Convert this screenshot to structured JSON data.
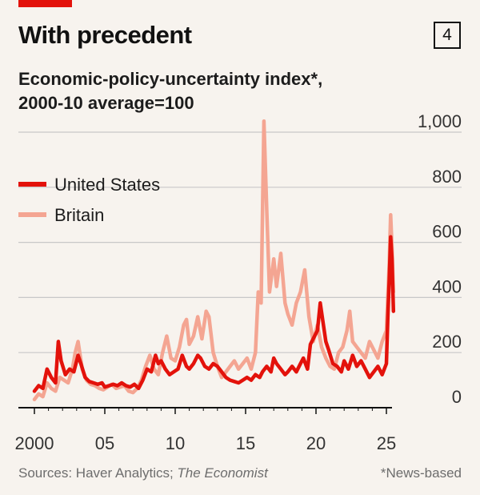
{
  "header": {
    "title": "With precedent",
    "badge": "4",
    "subtitle_line1": "Economic-policy-uncertainty index*,",
    "subtitle_line2": "2000-10 average=100"
  },
  "footer": {
    "sources_prefix": "Sources: Haver Analytics; ",
    "sources_italic": "The Economist",
    "note": "*News-based"
  },
  "colors": {
    "background": "#f7f3ee",
    "united_states": "#e3120b",
    "britain": "#f4a592",
    "accent": "#e3120b",
    "grid": "#c8c8c8"
  },
  "chart_data": {
    "type": "line",
    "title": "With precedent",
    "subtitle": "Economic-policy-uncertainty index*, 2000-10 average=100",
    "xlim": [
      2000,
      2025.5
    ],
    "ylim": [
      0,
      1000
    ],
    "x_ticks": [
      2000,
      2005,
      2010,
      2015,
      2020,
      2025
    ],
    "x_tick_labels": [
      "2000",
      "05",
      "10",
      "15",
      "20",
      "25"
    ],
    "y_ticks": [
      0,
      200,
      400,
      600,
      800,
      1000
    ],
    "y_tick_labels": [
      "0",
      "200",
      "400",
      "600",
      "800",
      "1,000"
    ],
    "grid": true,
    "legend_position": "top-left",
    "series": [
      {
        "name": "United States",
        "color": "#e3120b",
        "points": [
          [
            2000.0,
            60
          ],
          [
            2000.3,
            80
          ],
          [
            2000.6,
            70
          ],
          [
            2000.9,
            140
          ],
          [
            2001.2,
            110
          ],
          [
            2001.5,
            90
          ],
          [
            2001.7,
            240
          ],
          [
            2001.9,
            170
          ],
          [
            2002.2,
            120
          ],
          [
            2002.5,
            140
          ],
          [
            2002.8,
            130
          ],
          [
            2003.1,
            190
          ],
          [
            2003.3,
            160
          ],
          [
            2003.6,
            110
          ],
          [
            2003.9,
            95
          ],
          [
            2004.2,
            90
          ],
          [
            2004.5,
            85
          ],
          [
            2004.8,
            90
          ],
          [
            2005.0,
            75
          ],
          [
            2005.3,
            80
          ],
          [
            2005.6,
            85
          ],
          [
            2005.9,
            80
          ],
          [
            2006.2,
            90
          ],
          [
            2006.5,
            80
          ],
          [
            2006.8,
            75
          ],
          [
            2007.1,
            85
          ],
          [
            2007.4,
            70
          ],
          [
            2007.7,
            100
          ],
          [
            2008.0,
            140
          ],
          [
            2008.3,
            130
          ],
          [
            2008.6,
            190
          ],
          [
            2008.8,
            160
          ],
          [
            2009.0,
            170
          ],
          [
            2009.3,
            140
          ],
          [
            2009.6,
            120
          ],
          [
            2009.9,
            130
          ],
          [
            2010.2,
            140
          ],
          [
            2010.5,
            190
          ],
          [
            2010.8,
            150
          ],
          [
            2011.0,
            140
          ],
          [
            2011.3,
            160
          ],
          [
            2011.6,
            190
          ],
          [
            2011.8,
            180
          ],
          [
            2012.1,
            150
          ],
          [
            2012.4,
            140
          ],
          [
            2012.7,
            160
          ],
          [
            2013.0,
            150
          ],
          [
            2013.3,
            130
          ],
          [
            2013.6,
            110
          ],
          [
            2013.9,
            100
          ],
          [
            2014.2,
            95
          ],
          [
            2014.5,
            90
          ],
          [
            2014.8,
            100
          ],
          [
            2015.1,
            110
          ],
          [
            2015.4,
            100
          ],
          [
            2015.7,
            120
          ],
          [
            2016.0,
            110
          ],
          [
            2016.2,
            130
          ],
          [
            2016.5,
            150
          ],
          [
            2016.8,
            130
          ],
          [
            2017.0,
            180
          ],
          [
            2017.2,
            160
          ],
          [
            2017.5,
            140
          ],
          [
            2017.8,
            120
          ],
          [
            2018.0,
            130
          ],
          [
            2018.3,
            150
          ],
          [
            2018.6,
            130
          ],
          [
            2018.9,
            160
          ],
          [
            2019.1,
            180
          ],
          [
            2019.4,
            140
          ],
          [
            2019.6,
            230
          ],
          [
            2019.9,
            260
          ],
          [
            2020.1,
            280
          ],
          [
            2020.3,
            380
          ],
          [
            2020.5,
            310
          ],
          [
            2020.7,
            240
          ],
          [
            2020.9,
            210
          ],
          [
            2021.2,
            160
          ],
          [
            2021.5,
            150
          ],
          [
            2021.8,
            130
          ],
          [
            2022.0,
            170
          ],
          [
            2022.3,
            140
          ],
          [
            2022.6,
            190
          ],
          [
            2022.9,
            150
          ],
          [
            2023.2,
            170
          ],
          [
            2023.5,
            140
          ],
          [
            2023.8,
            110
          ],
          [
            2024.1,
            130
          ],
          [
            2024.4,
            150
          ],
          [
            2024.7,
            120
          ],
          [
            2025.0,
            160
          ],
          [
            2025.1,
            330
          ],
          [
            2025.2,
            460
          ],
          [
            2025.3,
            620
          ],
          [
            2025.4,
            540
          ],
          [
            2025.5,
            350
          ]
        ]
      },
      {
        "name": "Britain",
        "color": "#f4a592",
        "points": [
          [
            2000.0,
            30
          ],
          [
            2000.3,
            50
          ],
          [
            2000.6,
            40
          ],
          [
            2000.9,
            90
          ],
          [
            2001.2,
            70
          ],
          [
            2001.5,
            60
          ],
          [
            2001.8,
            110
          ],
          [
            2002.1,
            100
          ],
          [
            2002.4,
            90
          ],
          [
            2002.7,
            140
          ],
          [
            2002.9,
            200
          ],
          [
            2003.1,
            240
          ],
          [
            2003.4,
            140
          ],
          [
            2003.7,
            100
          ],
          [
            2004.0,
            85
          ],
          [
            2004.3,
            80
          ],
          [
            2004.6,
            70
          ],
          [
            2004.9,
            65
          ],
          [
            2005.2,
            75
          ],
          [
            2005.5,
            85
          ],
          [
            2005.8,
            70
          ],
          [
            2006.1,
            75
          ],
          [
            2006.4,
            80
          ],
          [
            2006.7,
            60
          ],
          [
            2007.0,
            55
          ],
          [
            2007.3,
            70
          ],
          [
            2007.6,
            100
          ],
          [
            2007.9,
            150
          ],
          [
            2008.2,
            190
          ],
          [
            2008.5,
            140
          ],
          [
            2008.8,
            120
          ],
          [
            2009.1,
            200
          ],
          [
            2009.4,
            260
          ],
          [
            2009.7,
            180
          ],
          [
            2010.0,
            170
          ],
          [
            2010.3,
            220
          ],
          [
            2010.6,
            300
          ],
          [
            2010.8,
            320
          ],
          [
            2011.0,
            230
          ],
          [
            2011.3,
            260
          ],
          [
            2011.6,
            330
          ],
          [
            2011.9,
            250
          ],
          [
            2012.2,
            350
          ],
          [
            2012.4,
            330
          ],
          [
            2012.7,
            200
          ],
          [
            2013.0,
            150
          ],
          [
            2013.3,
            110
          ],
          [
            2013.6,
            130
          ],
          [
            2013.9,
            150
          ],
          [
            2014.2,
            170
          ],
          [
            2014.5,
            140
          ],
          [
            2014.8,
            160
          ],
          [
            2015.1,
            180
          ],
          [
            2015.4,
            140
          ],
          [
            2015.7,
            200
          ],
          [
            2015.9,
            420
          ],
          [
            2016.1,
            380
          ],
          [
            2016.3,
            1040
          ],
          [
            2016.5,
            720
          ],
          [
            2016.7,
            420
          ],
          [
            2017.0,
            540
          ],
          [
            2017.2,
            440
          ],
          [
            2017.5,
            560
          ],
          [
            2017.8,
            380
          ],
          [
            2018.0,
            340
          ],
          [
            2018.3,
            300
          ],
          [
            2018.6,
            380
          ],
          [
            2018.9,
            420
          ],
          [
            2019.2,
            500
          ],
          [
            2019.5,
            330
          ],
          [
            2019.8,
            240
          ],
          [
            2020.1,
            300
          ],
          [
            2020.4,
            220
          ],
          [
            2020.7,
            180
          ],
          [
            2021.0,
            150
          ],
          [
            2021.3,
            140
          ],
          [
            2021.6,
            200
          ],
          [
            2021.9,
            220
          ],
          [
            2022.2,
            280
          ],
          [
            2022.4,
            350
          ],
          [
            2022.6,
            240
          ],
          [
            2022.9,
            220
          ],
          [
            2023.2,
            200
          ],
          [
            2023.5,
            180
          ],
          [
            2023.8,
            240
          ],
          [
            2024.1,
            210
          ],
          [
            2024.4,
            180
          ],
          [
            2024.7,
            240
          ],
          [
            2025.0,
            280
          ],
          [
            2025.2,
            520
          ],
          [
            2025.3,
            700
          ],
          [
            2025.4,
            580
          ],
          [
            2025.5,
            420
          ]
        ]
      }
    ]
  }
}
